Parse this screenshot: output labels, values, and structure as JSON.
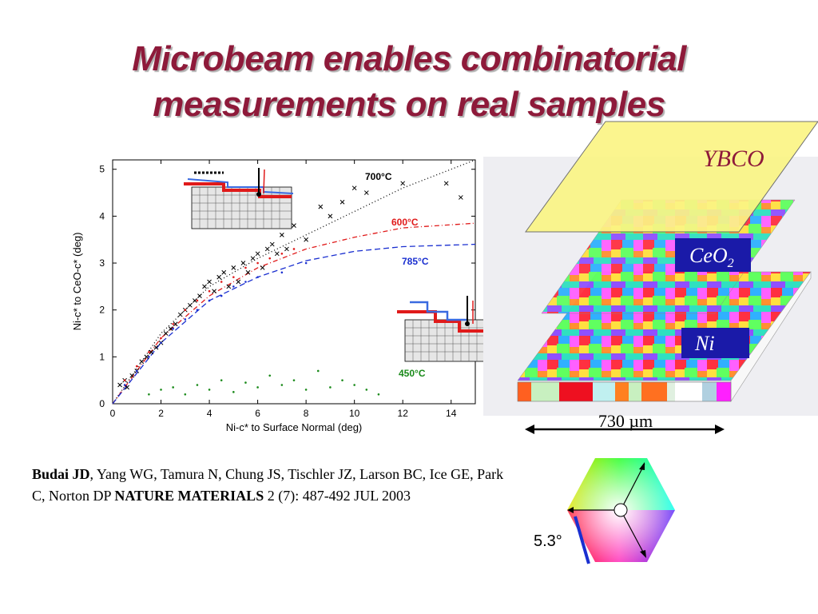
{
  "slide": {
    "title_line1": "Microbeam enables combinatorial",
    "title_line2": "measurements on real samples"
  },
  "chart_data": {
    "type": "scatter",
    "xlabel": "Ni-c*  to  Surface Normal (deg)",
    "ylabel": "Ni-c*  to  CeO-c*  (deg)",
    "xlim": [
      0,
      15
    ],
    "ylim": [
      0,
      5.2
    ],
    "xticks": [
      0,
      2,
      4,
      6,
      8,
      10,
      12,
      14
    ],
    "yticks": [
      0,
      1,
      2,
      3,
      4,
      5
    ],
    "annotations": [
      {
        "label": "700°C",
        "color": "#000000"
      },
      {
        "label": "600°C",
        "color": "#e01a1a"
      },
      {
        "label": "785°C",
        "color": "#1a2fd0"
      },
      {
        "label": "450°C",
        "color": "#1a8a1a"
      }
    ],
    "series": [
      {
        "name": "700°C",
        "color": "#000000",
        "marker": "x",
        "points": [
          [
            0.3,
            0.4
          ],
          [
            0.5,
            0.5
          ],
          [
            0.6,
            0.35
          ],
          [
            0.8,
            0.6
          ],
          [
            1.0,
            0.7
          ],
          [
            1.2,
            0.9
          ],
          [
            1.4,
            1.0
          ],
          [
            1.6,
            1.1
          ],
          [
            1.8,
            1.2
          ],
          [
            2.0,
            1.3
          ],
          [
            2.2,
            1.5
          ],
          [
            2.4,
            1.6
          ],
          [
            2.6,
            1.7
          ],
          [
            2.8,
            1.9
          ],
          [
            3.0,
            2.0
          ],
          [
            3.2,
            2.1
          ],
          [
            3.4,
            2.2
          ],
          [
            3.6,
            2.3
          ],
          [
            3.8,
            2.5
          ],
          [
            4.0,
            2.6
          ],
          [
            4.2,
            2.4
          ],
          [
            4.4,
            2.7
          ],
          [
            4.6,
            2.8
          ],
          [
            4.8,
            2.5
          ],
          [
            5.0,
            2.9
          ],
          [
            5.2,
            2.6
          ],
          [
            5.4,
            3.0
          ],
          [
            5.6,
            2.8
          ],
          [
            5.8,
            3.1
          ],
          [
            6.0,
            3.2
          ],
          [
            6.2,
            2.9
          ],
          [
            6.4,
            3.3
          ],
          [
            6.6,
            3.4
          ],
          [
            6.8,
            3.2
          ],
          [
            7.0,
            3.6
          ],
          [
            7.2,
            3.3
          ],
          [
            7.5,
            3.8
          ],
          [
            8.0,
            3.5
          ],
          [
            8.6,
            4.2
          ],
          [
            9.0,
            4.0
          ],
          [
            9.5,
            4.3
          ],
          [
            10.0,
            4.6
          ],
          [
            10.5,
            4.5
          ],
          [
            12.0,
            4.7
          ],
          [
            13.8,
            4.7
          ],
          [
            14.4,
            4.4
          ]
        ]
      },
      {
        "name": "600°C",
        "color": "#e01a1a",
        "marker": "dot",
        "points": [
          [
            0.5,
            0.5
          ],
          [
            1.0,
            0.8
          ],
          [
            1.5,
            1.1
          ],
          [
            2.0,
            1.4
          ],
          [
            2.5,
            1.7
          ],
          [
            3.0,
            2.0
          ],
          [
            3.5,
            2.2
          ],
          [
            4.0,
            2.4
          ],
          [
            4.5,
            2.6
          ],
          [
            5.0,
            2.7
          ],
          [
            5.5,
            2.9
          ],
          [
            6.0,
            3.0
          ],
          [
            6.5,
            3.1
          ],
          [
            7.0,
            3.2
          ],
          [
            7.5,
            3.3
          ]
        ]
      },
      {
        "name": "785°C",
        "color": "#1a2fd0",
        "marker": "dot",
        "points": [
          [
            0.5,
            0.4
          ],
          [
            1.0,
            0.7
          ],
          [
            1.5,
            1.0
          ],
          [
            2.0,
            1.3
          ],
          [
            2.5,
            1.6
          ],
          [
            3.0,
            1.8
          ],
          [
            3.5,
            2.0
          ],
          [
            4.0,
            2.2
          ],
          [
            4.5,
            2.3
          ],
          [
            5.0,
            2.5
          ],
          [
            5.5,
            2.6
          ],
          [
            6.0,
            2.7
          ],
          [
            7.0,
            2.8
          ],
          [
            8.0,
            3.0
          ]
        ]
      },
      {
        "name": "450°C",
        "color": "#1a8a1a",
        "marker": "dot",
        "points": [
          [
            1.5,
            0.2
          ],
          [
            2.0,
            0.3
          ],
          [
            2.5,
            0.35
          ],
          [
            3.0,
            0.2
          ],
          [
            3.5,
            0.4
          ],
          [
            4.0,
            0.3
          ],
          [
            4.5,
            0.5
          ],
          [
            5.0,
            0.25
          ],
          [
            5.5,
            0.45
          ],
          [
            6.0,
            0.35
          ],
          [
            6.5,
            0.6
          ],
          [
            7.0,
            0.4
          ],
          [
            7.5,
            0.5
          ],
          [
            8.0,
            0.3
          ],
          [
            8.5,
            0.7
          ],
          [
            9.0,
            0.35
          ],
          [
            9.5,
            0.5
          ],
          [
            10.0,
            0.4
          ],
          [
            10.5,
            0.3
          ],
          [
            11.0,
            0.2
          ]
        ]
      }
    ],
    "fits": [
      {
        "name": "700°C",
        "color": "#000000",
        "style": "dotted",
        "points": [
          [
            0,
            0
          ],
          [
            2,
            1.5
          ],
          [
            4,
            2.5
          ],
          [
            6,
            3.1
          ],
          [
            8,
            3.6
          ],
          [
            10,
            4.1
          ],
          [
            12,
            4.6
          ],
          [
            15,
            5.2
          ]
        ]
      },
      {
        "name": "600°C",
        "color": "#e01a1a",
        "style": "dashdot",
        "points": [
          [
            0,
            0
          ],
          [
            2,
            1.4
          ],
          [
            4,
            2.3
          ],
          [
            6,
            2.9
          ],
          [
            8,
            3.3
          ],
          [
            10,
            3.55
          ],
          [
            12,
            3.75
          ],
          [
            15,
            3.85
          ]
        ]
      },
      {
        "name": "785°C",
        "color": "#1a2fd0",
        "style": "dashed",
        "points": [
          [
            0,
            0
          ],
          [
            2,
            1.3
          ],
          [
            4,
            2.2
          ],
          [
            6,
            2.7
          ],
          [
            8,
            3.05
          ],
          [
            10,
            3.25
          ],
          [
            12,
            3.35
          ],
          [
            15,
            3.4
          ]
        ]
      }
    ]
  },
  "illustration": {
    "layer_top": "YBCO",
    "layer_mid": "CeO",
    "layer_mid_sub": "2",
    "layer_bottom": "Ni",
    "scale_label": "730 µm"
  },
  "wheel": {
    "angle_label": "5.3°"
  },
  "citation": {
    "author_bold": "Budai JD",
    "authors_rest": ", Yang WG, Tamura N, Chung JS, Tischler JZ, Larson BC, Ice GE, Park C, Norton DP ",
    "journal_bold": "NATURE MATERIALS",
    "rest": " 2 (7): 487-492 JUL 2003"
  }
}
